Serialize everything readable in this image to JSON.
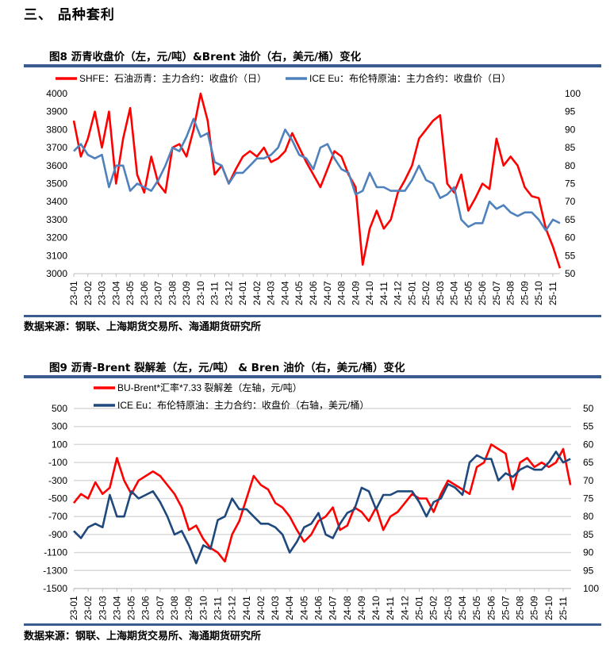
{
  "section_heading": "三、  品种套利",
  "source_text": "数据来源：钢联、上海期货交易所、海通期货研究所",
  "chart_data": [
    {
      "type": "line",
      "title": "图8   沥青收盘价（左，元/吨）&Brent 油价（右，美元/桶）变化",
      "x_ticks": [
        "23-01",
        "23-02",
        "23-03",
        "23-04",
        "23-05",
        "23-06",
        "23-07",
        "23-08",
        "23-09",
        "23-10",
        "23-11",
        "23-12",
        "24-01",
        "24-02",
        "24-03",
        "24-04",
        "24-05",
        "24-06",
        "24-07",
        "24-08",
        "24-09",
        "24-10",
        "24-11",
        "24-12",
        "25-01",
        "25-02",
        "25-03",
        "25-04",
        "25-05",
        "25-06",
        "25-07",
        "25-08",
        "25-09",
        "25-10",
        "25-11"
      ],
      "y_left": {
        "min": 3000,
        "max": 4000,
        "ticks": [
          3000,
          3100,
          3200,
          3300,
          3400,
          3500,
          3600,
          3700,
          3800,
          3900,
          4000
        ]
      },
      "y_right": {
        "min": 50,
        "max": 100,
        "inverted": false,
        "ticks": [
          50,
          55,
          60,
          65,
          70,
          75,
          80,
          85,
          90,
          95,
          100
        ]
      },
      "grid": false,
      "legend_placement": "top",
      "series": [
        {
          "name": "SHFE：石油沥青：主力合约：收盘价（日）",
          "axis": "left",
          "color": "#ff0000",
          "values": [
            3850,
            3650,
            3750,
            3900,
            3700,
            3900,
            3500,
            3750,
            3920,
            3550,
            3450,
            3650,
            3500,
            3450,
            3700,
            3720,
            3650,
            3800,
            4000,
            3850,
            3550,
            3600,
            3500,
            3580,
            3650,
            3680,
            3650,
            3700,
            3620,
            3640,
            3680,
            3780,
            3700,
            3620,
            3550,
            3480,
            3580,
            3680,
            3650,
            3550,
            3480,
            3050,
            3250,
            3350,
            3250,
            3300,
            3450,
            3520,
            3600,
            3750,
            3800,
            3850,
            3880,
            3500,
            3450,
            3550,
            3350,
            3420,
            3500,
            3470,
            3750,
            3600,
            3650,
            3600,
            3480,
            3430,
            3420,
            3250,
            3150,
            3030
          ]
        },
        {
          "name": "ICE Eu：布伦特原油：主力合约：收盘价（日）",
          "axis": "right",
          "color": "#4f81bd",
          "values": [
            84,
            86,
            83,
            82,
            83,
            74,
            80,
            80,
            73,
            75,
            74,
            73,
            76,
            80,
            85,
            84,
            88,
            93,
            88,
            89,
            81,
            80,
            75,
            78,
            78,
            80,
            82,
            82,
            83,
            85,
            90,
            87,
            83,
            82,
            79,
            85,
            86,
            82,
            79,
            78,
            72,
            73,
            78,
            74,
            74,
            73,
            73,
            73,
            76,
            80,
            76,
            75,
            71,
            72,
            74,
            65,
            63,
            64,
            64,
            70,
            68,
            69,
            67,
            66,
            67,
            67,
            65,
            62,
            65,
            64
          ]
        }
      ]
    },
    {
      "type": "line",
      "title": "图9   沥青-Brent 裂解差（左，元/吨）  & Bren 油价（右，美元/桶）变化",
      "x_ticks": [
        "23-01",
        "23-02",
        "23-03",
        "23-04",
        "23-05",
        "23-06",
        "23-07",
        "23-08",
        "23-09",
        "23-10",
        "23-11",
        "23-12",
        "24-01",
        "24-02",
        "24-03",
        "24-04",
        "24-05",
        "24-06",
        "24-07",
        "24-08",
        "24-09",
        "24-10",
        "24-11",
        "24-12",
        "25-01",
        "25-02",
        "25-03",
        "25-04",
        "25-05",
        "25-06",
        "25-07",
        "25-08",
        "25-09",
        "25-10",
        "25-11"
      ],
      "y_left": {
        "min": -1500,
        "max": 500,
        "ticks": [
          -1500,
          -1300,
          -1100,
          -900,
          -700,
          -500,
          -300,
          -100,
          100,
          300,
          500
        ]
      },
      "y_right": {
        "min": 50,
        "max": 100,
        "inverted": true,
        "ticks": [
          50,
          55,
          60,
          65,
          70,
          75,
          80,
          85,
          90,
          95,
          100
        ]
      },
      "grid": true,
      "legend_placement": "top",
      "series": [
        {
          "name": "BU-Brent*汇率*7.33 裂解差（左轴，元/吨）",
          "axis": "left",
          "color": "#ff0000",
          "values": [
            -550,
            -450,
            -500,
            -320,
            -450,
            -380,
            -50,
            -300,
            -450,
            -300,
            -250,
            -200,
            -250,
            -350,
            -450,
            -600,
            -850,
            -800,
            -950,
            -1050,
            -1100,
            -1200,
            -900,
            -750,
            -500,
            -250,
            -350,
            -400,
            -550,
            -600,
            -700,
            -850,
            -980,
            -900,
            -750,
            -700,
            -600,
            -850,
            -800,
            -600,
            -650,
            -750,
            -600,
            -850,
            -700,
            -650,
            -550,
            -450,
            -500,
            -500,
            -650,
            -450,
            -300,
            -350,
            -400,
            -450,
            -150,
            -100,
            100,
            50,
            0,
            -400,
            -100,
            -50,
            -150,
            -100,
            -150,
            -100,
            50,
            -350
          ]
        },
        {
          "name": "ICE Eu：布伦特原油：主力合约：收盘价（右轴，美元/桶）",
          "axis": "right",
          "color": "#1f497d",
          "values": [
            84,
            86,
            83,
            82,
            83,
            74,
            80,
            80,
            73,
            75,
            74,
            73,
            76,
            80,
            85,
            84,
            88,
            93,
            88,
            89,
            81,
            80,
            75,
            78,
            78,
            80,
            82,
            82,
            83,
            85,
            90,
            87,
            83,
            82,
            79,
            85,
            86,
            82,
            79,
            78,
            72,
            73,
            78,
            74,
            74,
            73,
            73,
            73,
            76,
            80,
            76,
            75,
            71,
            72,
            74,
            65,
            63,
            64,
            64,
            70,
            68,
            69,
            67,
            66,
            67,
            67,
            65,
            62,
            65,
            64
          ]
        }
      ]
    }
  ]
}
